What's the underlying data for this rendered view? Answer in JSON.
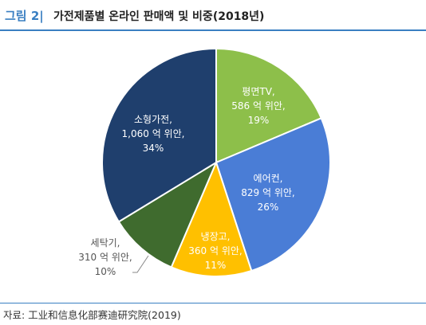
{
  "header": {
    "figure_number": "그림 2|",
    "title": "가전제품별 온라인 판매액 및 비중(2018년)"
  },
  "chart_data": {
    "type": "pie",
    "slices": [
      {
        "lines": [
          "평면TV,",
          "586 억 위안,",
          "19%"
        ],
        "value": 586,
        "percent": 19,
        "color": "#8dbf4a",
        "text_color": "#ffffff"
      },
      {
        "lines": [
          "에어컨,",
          "829 억 위안,",
          "26%"
        ],
        "value": 829,
        "percent": 26,
        "color": "#4a7dd6",
        "text_color": "#ffffff"
      },
      {
        "lines": [
          "냉장고,",
          "360 억 위안,",
          "11%"
        ],
        "value": 360,
        "percent": 11,
        "color": "#ffc000",
        "text_color": "#ffffff"
      },
      {
        "lines": [
          "세탁기,",
          "310 억 위안,",
          "10%"
        ],
        "value": 310,
        "percent": 10,
        "color": "#3f6b2e",
        "text_color": "#555555"
      },
      {
        "lines": [
          "소형가전,",
          "1,060 억 위안,",
          "34%"
        ],
        "value": 1060,
        "percent": 34,
        "color": "#1f3f6d",
        "text_color": "#ffffff"
      }
    ]
  },
  "footer": {
    "source": "자료: 工业和信息化部赛迪研究院(2019)"
  }
}
